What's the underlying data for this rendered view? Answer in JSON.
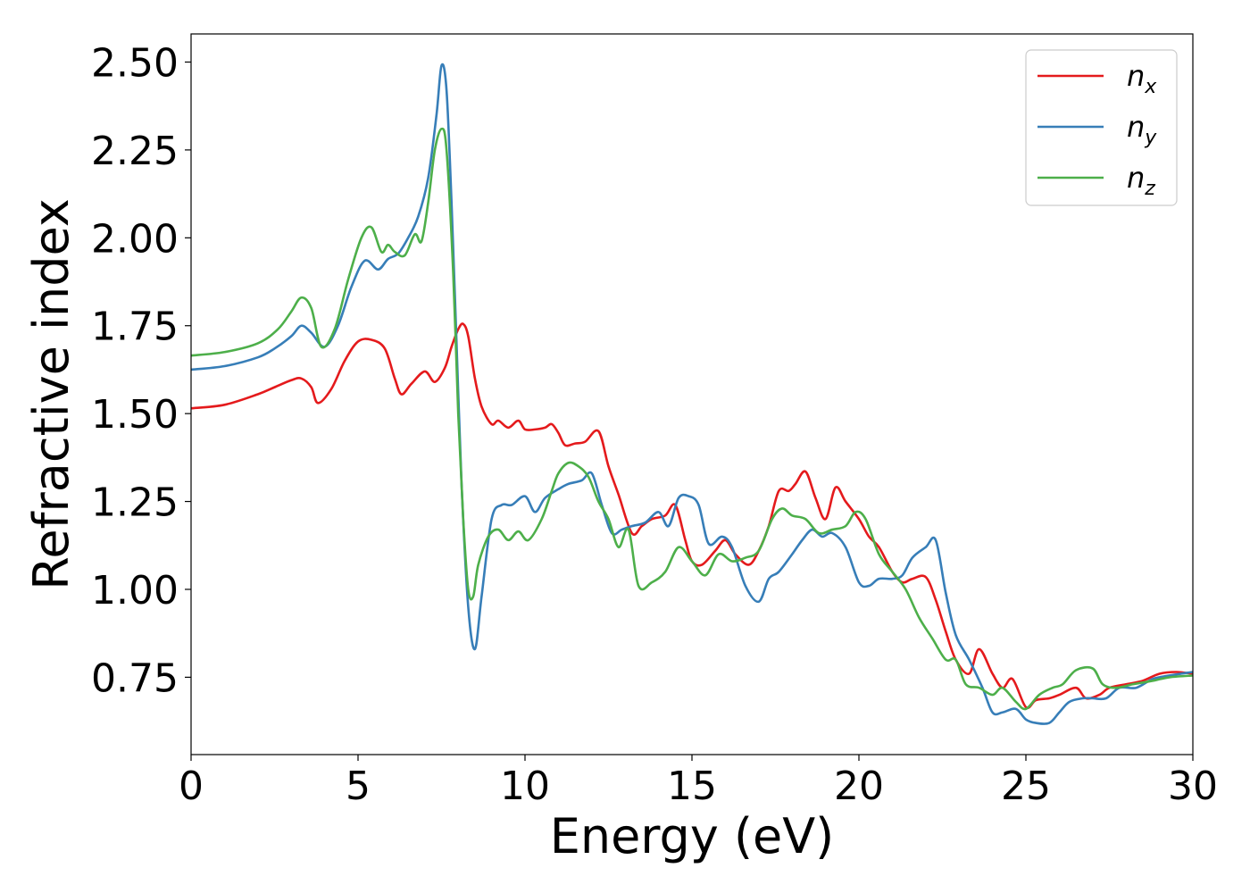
{
  "chart_data": {
    "type": "line",
    "title": "",
    "xlabel": "Energy (eV)",
    "ylabel": "Refractive index",
    "xlim": [
      0,
      30
    ],
    "ylim": [
      0.53,
      2.58
    ],
    "xticks": [
      0,
      5,
      10,
      15,
      20,
      25,
      30
    ],
    "xtick_labels": [
      "0",
      "5",
      "10",
      "15",
      "20",
      "25",
      "30"
    ],
    "yticks": [
      0.75,
      1.0,
      1.25,
      1.5,
      1.75,
      2.0,
      2.25,
      2.5
    ],
    "ytick_labels": [
      "0.75",
      "1.00",
      "1.25",
      "1.50",
      "1.75",
      "2.00",
      "2.25",
      "2.50"
    ],
    "grid": false,
    "legend_position": "top-right",
    "series": [
      {
        "name": "n_x",
        "label_base": "n",
        "label_sub": "x",
        "color": "#e41a1c",
        "x": [
          0,
          1,
          2,
          2.5,
          3,
          3.3,
          3.6,
          3.8,
          4.2,
          4.6,
          5,
          5.4,
          5.8,
          6.1,
          6.3,
          6.6,
          7.0,
          7.3,
          7.6,
          7.8,
          8.0,
          8.15,
          8.3,
          8.5,
          8.7,
          9.0,
          9.2,
          9.5,
          9.8,
          10.0,
          10.3,
          10.6,
          10.8,
          11.0,
          11.2,
          11.5,
          11.8,
          12.2,
          12.5,
          12.8,
          13.2,
          13.5,
          13.8,
          14.2,
          14.5,
          14.8,
          15.0,
          15.3,
          15.7,
          16.0,
          16.3,
          16.7,
          17.0,
          17.3,
          17.6,
          17.9,
          18.1,
          18.4,
          18.7,
          19.0,
          19.3,
          19.6,
          20.0,
          20.3,
          20.6,
          21.0,
          21.3,
          21.6,
          22.0,
          22.3,
          22.6,
          22.9,
          23.3,
          23.6,
          24.0,
          24.3,
          24.6,
          25.0,
          25.3,
          25.7,
          26.0,
          26.5,
          26.8,
          27.2,
          27.5,
          28.0,
          28.5,
          29.0,
          29.5,
          30.0
        ],
        "y": [
          1.515,
          1.525,
          1.555,
          1.575,
          1.595,
          1.6,
          1.575,
          1.53,
          1.57,
          1.65,
          1.705,
          1.71,
          1.685,
          1.6,
          1.555,
          1.585,
          1.62,
          1.59,
          1.63,
          1.69,
          1.74,
          1.755,
          1.72,
          1.6,
          1.52,
          1.47,
          1.48,
          1.46,
          1.48,
          1.455,
          1.455,
          1.46,
          1.47,
          1.445,
          1.41,
          1.415,
          1.42,
          1.45,
          1.35,
          1.27,
          1.16,
          1.18,
          1.2,
          1.21,
          1.24,
          1.14,
          1.08,
          1.07,
          1.11,
          1.14,
          1.1,
          1.07,
          1.11,
          1.18,
          1.28,
          1.28,
          1.3,
          1.335,
          1.26,
          1.2,
          1.29,
          1.25,
          1.2,
          1.15,
          1.12,
          1.05,
          1.02,
          1.03,
          1.035,
          0.97,
          0.88,
          0.8,
          0.76,
          0.83,
          0.76,
          0.72,
          0.745,
          0.665,
          0.685,
          0.69,
          0.7,
          0.72,
          0.69,
          0.7,
          0.72,
          0.73,
          0.74,
          0.76,
          0.765,
          0.76
        ]
      },
      {
        "name": "n_y",
        "label_base": "n",
        "label_sub": "y",
        "color": "#377eb8",
        "x": [
          0,
          1,
          2,
          2.5,
          3,
          3.3,
          3.6,
          4.0,
          4.4,
          4.8,
          5.2,
          5.6,
          5.9,
          6.2,
          6.5,
          6.8,
          7.1,
          7.35,
          7.5,
          7.65,
          7.8,
          7.95,
          8.1,
          8.3,
          8.5,
          8.7,
          9.0,
          9.3,
          9.6,
          10.0,
          10.3,
          10.6,
          11.0,
          11.3,
          11.7,
          12.0,
          12.3,
          12.6,
          12.9,
          13.2,
          13.6,
          14.0,
          14.3,
          14.6,
          14.9,
          15.2,
          15.5,
          15.9,
          16.2,
          16.6,
          17.0,
          17.3,
          17.6,
          18.0,
          18.3,
          18.6,
          18.9,
          19.2,
          19.6,
          20.0,
          20.3,
          20.6,
          21.0,
          21.3,
          21.6,
          22.0,
          22.3,
          22.6,
          22.9,
          23.3,
          23.7,
          24.0,
          24.3,
          24.7,
          25.0,
          25.3,
          25.7,
          26.0,
          26.3,
          26.7,
          27.0,
          27.4,
          27.8,
          28.3,
          28.8,
          29.3,
          30.0
        ],
        "y": [
          1.625,
          1.635,
          1.66,
          1.685,
          1.72,
          1.75,
          1.73,
          1.69,
          1.75,
          1.86,
          1.935,
          1.91,
          1.94,
          1.955,
          2.0,
          2.06,
          2.17,
          2.35,
          2.49,
          2.42,
          2.1,
          1.7,
          1.3,
          0.95,
          0.83,
          0.98,
          1.2,
          1.24,
          1.24,
          1.265,
          1.22,
          1.26,
          1.285,
          1.3,
          1.31,
          1.33,
          1.24,
          1.16,
          1.17,
          1.18,
          1.19,
          1.22,
          1.18,
          1.26,
          1.265,
          1.24,
          1.13,
          1.15,
          1.12,
          1.01,
          0.965,
          1.03,
          1.05,
          1.1,
          1.14,
          1.17,
          1.15,
          1.16,
          1.12,
          1.02,
          1.01,
          1.03,
          1.03,
          1.04,
          1.09,
          1.12,
          1.14,
          0.99,
          0.87,
          0.8,
          0.72,
          0.65,
          0.65,
          0.66,
          0.63,
          0.62,
          0.62,
          0.65,
          0.68,
          0.69,
          0.69,
          0.69,
          0.72,
          0.72,
          0.745,
          0.755,
          0.765
        ]
      },
      {
        "name": "n_z",
        "label_base": "n",
        "label_sub": "z",
        "color": "#4daf4a",
        "x": [
          0,
          1,
          2,
          2.6,
          3.0,
          3.3,
          3.6,
          3.9,
          4.3,
          4.7,
          5.1,
          5.4,
          5.7,
          5.9,
          6.1,
          6.4,
          6.7,
          6.9,
          7.1,
          7.3,
          7.5,
          7.65,
          7.85,
          8.0,
          8.15,
          8.3,
          8.45,
          8.6,
          8.9,
          9.2,
          9.5,
          9.8,
          10.1,
          10.5,
          10.8,
          11.0,
          11.3,
          11.6,
          11.9,
          12.2,
          12.5,
          12.8,
          13.1,
          13.4,
          13.8,
          14.2,
          14.6,
          15.0,
          15.4,
          15.8,
          16.2,
          16.6,
          17.0,
          17.4,
          17.7,
          18.0,
          18.4,
          18.8,
          19.2,
          19.6,
          19.9,
          20.2,
          20.6,
          21.0,
          21.4,
          21.8,
          22.2,
          22.6,
          22.9,
          23.2,
          23.6,
          24.0,
          24.3,
          24.7,
          25.0,
          25.4,
          25.8,
          26.1,
          26.5,
          27.0,
          27.3,
          27.7,
          28.2,
          28.8,
          29.3,
          30.0
        ],
        "y": [
          1.665,
          1.675,
          1.7,
          1.74,
          1.79,
          1.83,
          1.8,
          1.69,
          1.74,
          1.88,
          2.0,
          2.03,
          1.96,
          1.98,
          1.96,
          1.95,
          2.01,
          1.99,
          2.1,
          2.25,
          2.31,
          2.25,
          1.9,
          1.5,
          1.2,
          1.0,
          0.98,
          1.07,
          1.15,
          1.17,
          1.14,
          1.165,
          1.14,
          1.2,
          1.28,
          1.33,
          1.36,
          1.35,
          1.32,
          1.25,
          1.2,
          1.12,
          1.17,
          1.01,
          1.02,
          1.05,
          1.12,
          1.08,
          1.04,
          1.1,
          1.08,
          1.09,
          1.11,
          1.2,
          1.23,
          1.21,
          1.2,
          1.16,
          1.17,
          1.18,
          1.22,
          1.2,
          1.1,
          1.05,
          1.0,
          0.92,
          0.86,
          0.8,
          0.8,
          0.73,
          0.72,
          0.7,
          0.72,
          0.68,
          0.66,
          0.7,
          0.72,
          0.73,
          0.77,
          0.775,
          0.73,
          0.72,
          0.73,
          0.74,
          0.75,
          0.755
        ]
      }
    ]
  }
}
